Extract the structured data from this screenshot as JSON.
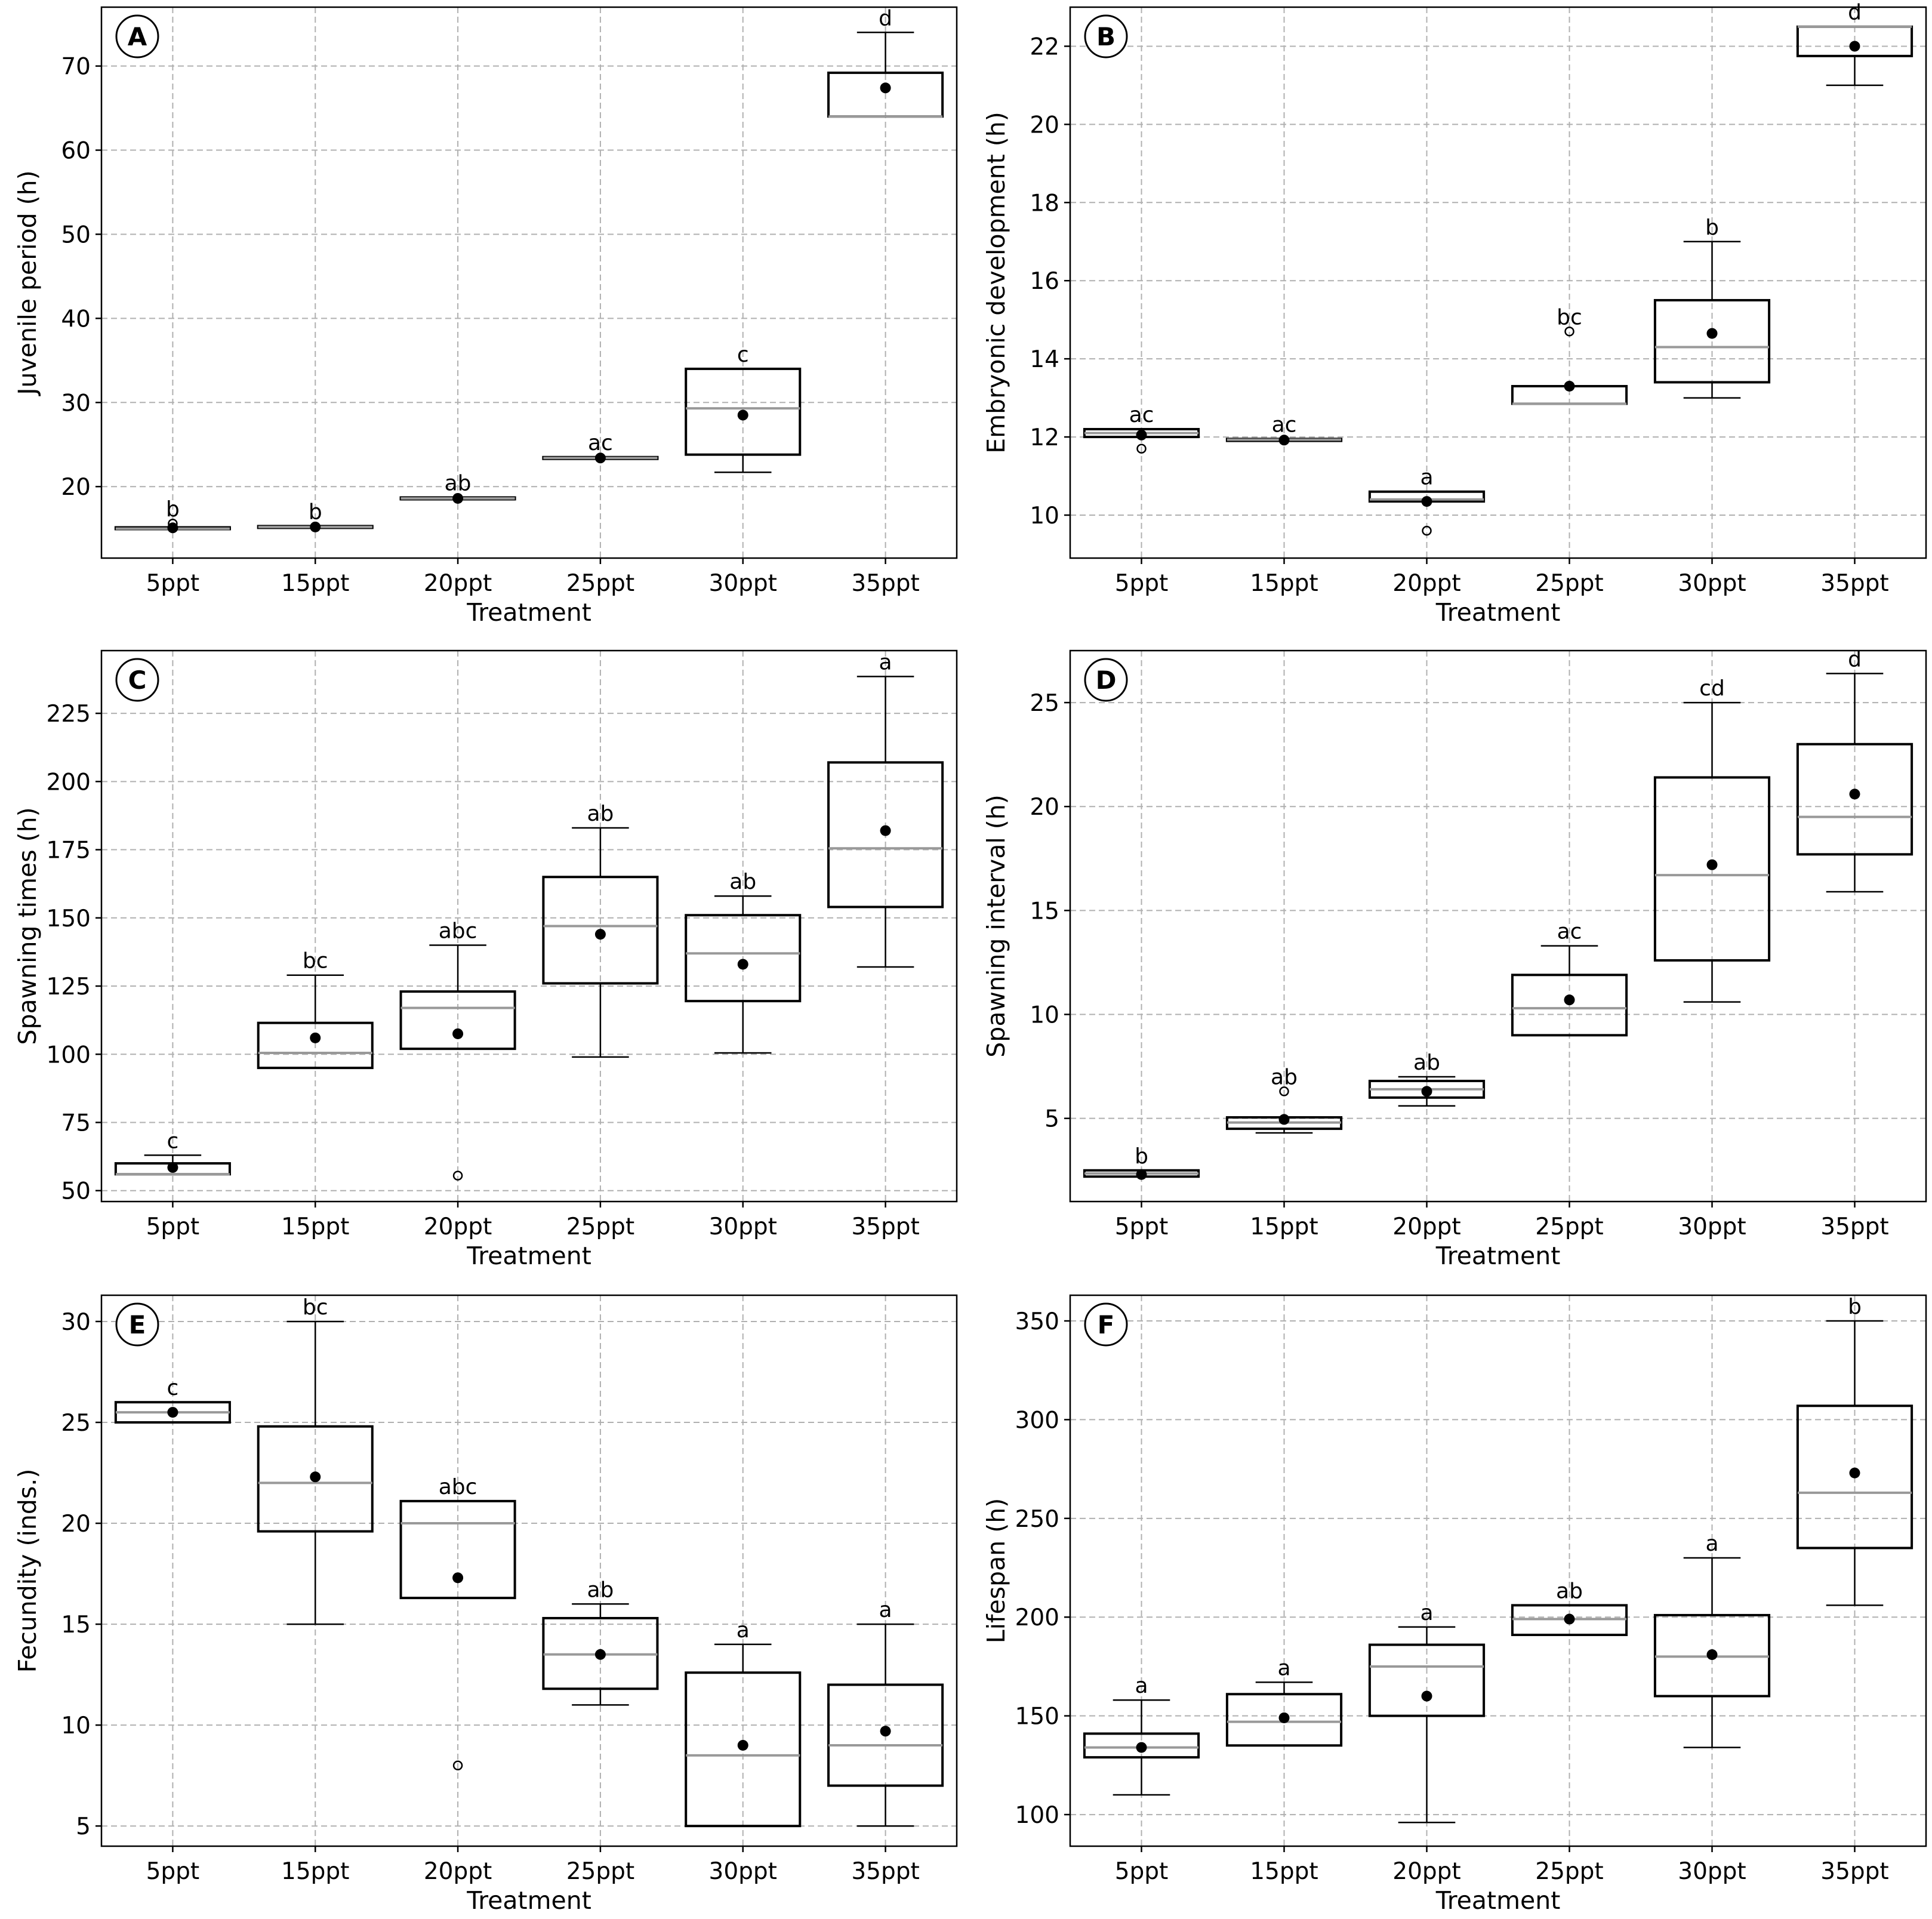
{
  "chart_data": [
    {
      "type": "box",
      "panel_label": "A",
      "xlabel": "Treatment",
      "ylabel": "Juvenile period (h)",
      "ylim": [
        11.5,
        77
      ],
      "yticks": [
        20,
        30,
        40,
        50,
        60,
        70
      ],
      "categories": [
        "5ppt",
        "15ppt",
        "20ppt",
        "25ppt",
        "30ppt",
        "35ppt"
      ],
      "boxes": [
        {
          "whislo": 15,
          "q1": 15,
          "med": 15,
          "q3": 15.1,
          "whishi": 15.1,
          "mean": 15.1,
          "outliers": [
            15.6
          ],
          "sig": "b"
        },
        {
          "whislo": 15.1,
          "q1": 15.1,
          "med": 15.2,
          "q3": 15.3,
          "whishi": 15.3,
          "mean": 15.2,
          "outliers": [],
          "sig": "b"
        },
        {
          "whislo": 18.5,
          "q1": 18.5,
          "med": 18.6,
          "q3": 18.7,
          "whishi": 18.7,
          "mean": 18.6,
          "outliers": [],
          "sig": "ab"
        },
        {
          "whislo": 23.3,
          "q1": 23.3,
          "med": 23.4,
          "q3": 23.5,
          "whishi": 23.5,
          "mean": 23.4,
          "outliers": [],
          "sig": "ac"
        },
        {
          "whislo": 21.7,
          "q1": 23.8,
          "med": 29.3,
          "q3": 34,
          "whishi": 34,
          "mean": 28.5,
          "outliers": [],
          "sig": "c"
        },
        {
          "whislo": 64,
          "q1": 64,
          "med": 64,
          "q3": 69.2,
          "whishi": 74,
          "mean": 67.4,
          "outliers": [],
          "sig": "d"
        }
      ]
    },
    {
      "type": "box",
      "panel_label": "B",
      "xlabel": "Treatment",
      "ylabel": "Embryonic development (h)",
      "ylim": [
        8.9,
        23
      ],
      "yticks": [
        10,
        12,
        14,
        16,
        18,
        20,
        22
      ],
      "categories": [
        "5ppt",
        "15ppt",
        "20ppt",
        "25ppt",
        "30ppt",
        "35ppt"
      ],
      "boxes": [
        {
          "whislo": 12,
          "q1": 12,
          "med": 12.1,
          "q3": 12.2,
          "whishi": 12.2,
          "mean": 12.05,
          "outliers": [
            11.7
          ],
          "sig": "ac"
        },
        {
          "whislo": 11.9,
          "q1": 11.9,
          "med": 11.93,
          "q3": 11.95,
          "whishi": 11.95,
          "mean": 11.92,
          "outliers": [],
          "sig": "ac"
        },
        {
          "whislo": 10.35,
          "q1": 10.35,
          "med": 10.4,
          "q3": 10.6,
          "whishi": 10.6,
          "mean": 10.35,
          "outliers": [
            9.6
          ],
          "sig": "a"
        },
        {
          "whislo": 12.85,
          "q1": 12.85,
          "med": 12.85,
          "q3": 13.3,
          "whishi": 13.3,
          "mean": 13.3,
          "outliers": [
            14.7
          ],
          "sig": "bc"
        },
        {
          "whislo": 13,
          "q1": 13.4,
          "med": 14.3,
          "q3": 15.5,
          "whishi": 17,
          "mean": 14.65,
          "outliers": [],
          "sig": "b"
        },
        {
          "whislo": 21,
          "q1": 21.75,
          "med": 22.5,
          "q3": 22.5,
          "whishi": 22.5,
          "mean": 22,
          "outliers": [],
          "sig": "d"
        }
      ]
    },
    {
      "type": "box",
      "panel_label": "C",
      "xlabel": "Treatment",
      "ylabel": "Spawning times (h)",
      "ylim": [
        46,
        248
      ],
      "yticks": [
        50,
        75,
        100,
        125,
        150,
        175,
        200,
        225
      ],
      "categories": [
        "5ppt",
        "15ppt",
        "20ppt",
        "25ppt",
        "30ppt",
        "35ppt"
      ],
      "boxes": [
        {
          "whislo": 56,
          "q1": 56,
          "med": 56,
          "q3": 60,
          "whishi": 63,
          "mean": 58.5,
          "outliers": [],
          "sig": "c"
        },
        {
          "whislo": 95,
          "q1": 95,
          "med": 100.5,
          "q3": 111.5,
          "whishi": 129,
          "mean": 106,
          "outliers": [],
          "sig": "bc"
        },
        {
          "whislo": 102,
          "q1": 102,
          "med": 117,
          "q3": 123,
          "whishi": 140,
          "mean": 107.5,
          "outliers": [
            55.5
          ],
          "sig": "abc"
        },
        {
          "whislo": 99,
          "q1": 126,
          "med": 147,
          "q3": 165,
          "whishi": 183,
          "mean": 144,
          "outliers": [],
          "sig": "ab"
        },
        {
          "whislo": 100.5,
          "q1": 119.5,
          "med": 137,
          "q3": 151,
          "whishi": 158,
          "mean": 133,
          "outliers": [],
          "sig": "ab"
        },
        {
          "whislo": 132,
          "q1": 154,
          "med": 175.5,
          "q3": 207,
          "whishi": 238.5,
          "mean": 182,
          "outliers": [],
          "sig": "a"
        }
      ]
    },
    {
      "type": "box",
      "panel_label": "D",
      "xlabel": "Treatment",
      "ylabel": "Spawning interval (h)",
      "ylim": [
        1,
        27.5
      ],
      "yticks": [
        5,
        10,
        15,
        20,
        25
      ],
      "categories": [
        "5ppt",
        "15ppt",
        "20ppt",
        "25ppt",
        "30ppt",
        "35ppt"
      ],
      "boxes": [
        {
          "whislo": 2.2,
          "q1": 2.2,
          "med": 2.35,
          "q3": 2.5,
          "whishi": 2.5,
          "mean": 2.3,
          "outliers": [],
          "sig": "b"
        },
        {
          "whislo": 4.3,
          "q1": 4.5,
          "med": 4.8,
          "q3": 5.05,
          "whishi": 5.05,
          "mean": 4.95,
          "outliers": [
            6.3
          ],
          "sig": "ab"
        },
        {
          "whislo": 5.6,
          "q1": 6,
          "med": 6.4,
          "q3": 6.8,
          "whishi": 7,
          "mean": 6.3,
          "outliers": [],
          "sig": "ab"
        },
        {
          "whislo": 9,
          "q1": 9,
          "med": 10.3,
          "q3": 11.9,
          "whishi": 13.3,
          "mean": 10.7,
          "outliers": [],
          "sig": "ac"
        },
        {
          "whislo": 10.6,
          "q1": 12.6,
          "med": 16.7,
          "q3": 21.4,
          "whishi": 25,
          "mean": 17.2,
          "outliers": [],
          "sig": "cd"
        },
        {
          "whislo": 15.9,
          "q1": 17.7,
          "med": 19.5,
          "q3": 23,
          "whishi": 26.4,
          "mean": 20.6,
          "outliers": [],
          "sig": "d"
        }
      ]
    },
    {
      "type": "box",
      "panel_label": "E",
      "xlabel": "Treatment",
      "ylabel": "Fecundity (inds.)",
      "ylim": [
        4,
        31.3
      ],
      "yticks": [
        5,
        10,
        15,
        20,
        25,
        30
      ],
      "categories": [
        "5ppt",
        "15ppt",
        "20ppt",
        "25ppt",
        "30ppt",
        "35ppt"
      ],
      "boxes": [
        {
          "whislo": 25,
          "q1": 25,
          "med": 25.5,
          "q3": 26,
          "whishi": 26,
          "mean": 25.5,
          "outliers": [],
          "sig": "c"
        },
        {
          "whislo": 15,
          "q1": 19.6,
          "med": 22,
          "q3": 24.8,
          "whishi": 30,
          "mean": 22.3,
          "outliers": [],
          "sig": "bc"
        },
        {
          "whislo": 16.3,
          "q1": 16.3,
          "med": 20,
          "q3": 21.1,
          "whishi": 21.1,
          "mean": 17.3,
          "outliers": [
            8
          ],
          "sig": "abc"
        },
        {
          "whislo": 11,
          "q1": 11.8,
          "med": 13.5,
          "q3": 15.3,
          "whishi": 16,
          "mean": 13.5,
          "outliers": [],
          "sig": "ab"
        },
        {
          "whislo": 5,
          "q1": 5,
          "med": 8.5,
          "q3": 12.6,
          "whishi": 14,
          "mean": 9,
          "outliers": [],
          "sig": "a"
        },
        {
          "whislo": 5,
          "q1": 7,
          "med": 9,
          "q3": 12,
          "whishi": 15,
          "mean": 9.7,
          "outliers": [],
          "sig": "a"
        }
      ]
    },
    {
      "type": "box",
      "panel_label": "F",
      "xlabel": "Treatment",
      "ylabel": "Lifespan (h)",
      "ylim": [
        84,
        363
      ],
      "yticks": [
        100,
        150,
        200,
        250,
        300,
        350
      ],
      "categories": [
        "5ppt",
        "15ppt",
        "20ppt",
        "25ppt",
        "30ppt",
        "35ppt"
      ],
      "boxes": [
        {
          "whislo": 110,
          "q1": 129,
          "med": 134,
          "q3": 141,
          "whishi": 158,
          "mean": 134,
          "outliers": [],
          "sig": "a"
        },
        {
          "whislo": 135,
          "q1": 135,
          "med": 147,
          "q3": 161,
          "whishi": 167,
          "mean": 149,
          "outliers": [],
          "sig": "a"
        },
        {
          "whislo": 96,
          "q1": 150,
          "med": 175,
          "q3": 186,
          "whishi": 195,
          "mean": 160,
          "outliers": [],
          "sig": "a"
        },
        {
          "whislo": 191,
          "q1": 191,
          "med": 199,
          "q3": 206,
          "whishi": 206,
          "mean": 199,
          "outliers": [],
          "sig": "ab"
        },
        {
          "whislo": 134,
          "q1": 160,
          "med": 180,
          "q3": 201,
          "whishi": 230,
          "mean": 181,
          "outliers": [],
          "sig": "a"
        },
        {
          "whislo": 206,
          "q1": 235,
          "med": 263,
          "q3": 307,
          "whishi": 350,
          "mean": 273,
          "outliers": [],
          "sig": "b"
        }
      ]
    }
  ]
}
